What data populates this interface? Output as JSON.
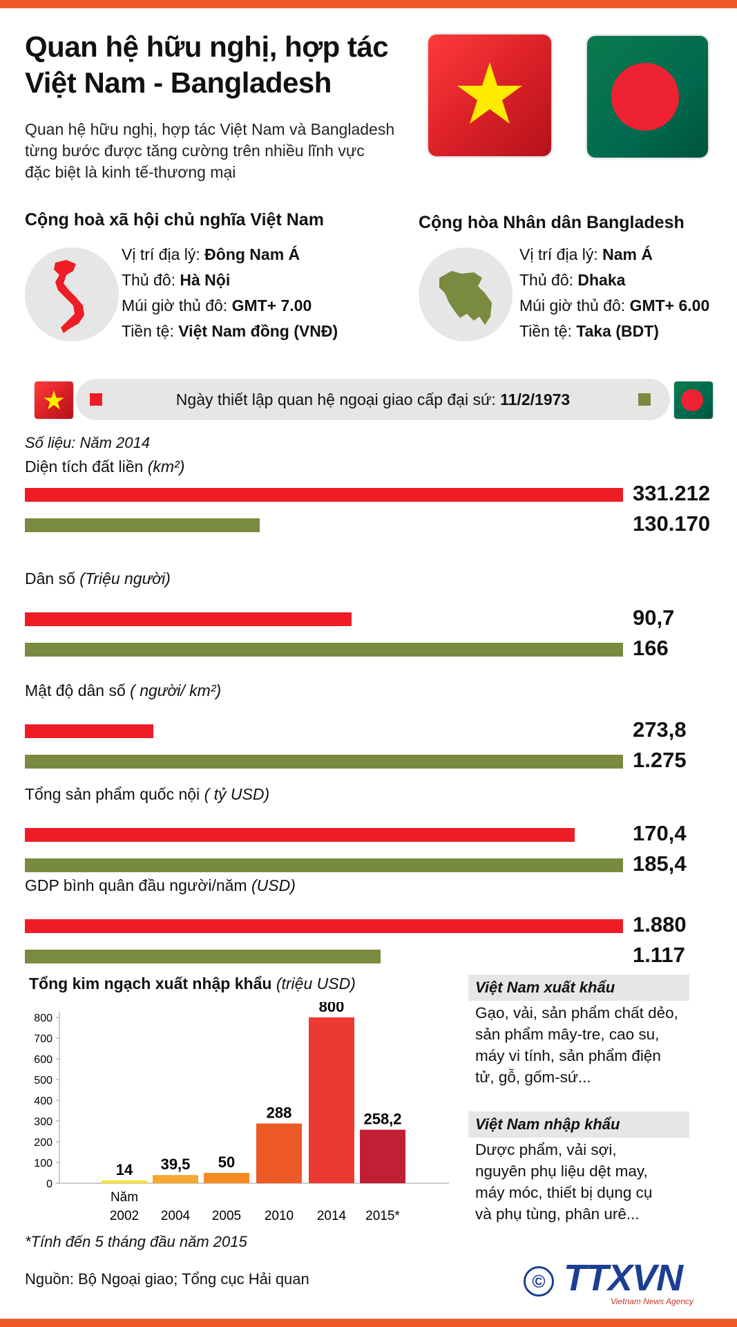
{
  "header": {
    "title_line1": "Quan hệ hữu nghị, hợp tác",
    "title_line2": "Việt Nam - Bangladesh",
    "intro_line1": "Quan hệ hữu nghị, hợp tác Việt Nam và Bangladesh",
    "intro_line2": "từng bước được tăng cường trên nhiều lĩnh vực",
    "intro_line3": "đặc biệt là kinh tế-thương mại"
  },
  "vietnam": {
    "heading": "Cộng hoà xã hội chủ nghĩa Việt Nam",
    "location_label": "Vị trí địa lý: ",
    "location": "Đông Nam Á",
    "capital_label": "Thủ đô: ",
    "capital": "Hà Nội",
    "timezone_label": "Múi giờ thủ đô: ",
    "timezone": "GMT+ 7.00",
    "currency_label": "Tiền tệ: ",
    "currency": "Việt Nam đồng (VNĐ)"
  },
  "bangladesh": {
    "heading": "Cộng hòa Nhân dân Bangladesh",
    "location_label": "Vị trí địa lý: ",
    "location": "Nam Á",
    "capital_label": "Thủ đô: ",
    "capital": "Dhaka",
    "timezone_label": "Múi giờ thủ đô: ",
    "timezone": "GMT+ 6.00",
    "currency_label": "Tiền tệ: ",
    "currency": "Taka (BDT)"
  },
  "relations": {
    "label": "Ngày thiết lập quan hệ ngoại giao cấp đại sứ: ",
    "date": "11/2/1973"
  },
  "colors": {
    "vietnam": "#ee1c25",
    "bangladesh": "#7a8a3e",
    "accent": "#f05a28"
  },
  "stats_note": "Số liệu: Năm 2014",
  "chart_data": [
    {
      "type": "bar",
      "orientation": "horizontal",
      "title": "",
      "stats": [
        {
          "label": "Diện tích đất liền ",
          "unit": "(km²)",
          "vietnam": 331212,
          "bangladesh": 130170,
          "vietnam_text": "331.212",
          "bangladesh_text": "130.170"
        },
        {
          "label": "Dân số ",
          "unit": "(Triệu người)",
          "vietnam": 90.7,
          "bangladesh": 166,
          "vietnam_text": "90,7",
          "bangladesh_text": "166"
        },
        {
          "label": "Mật độ dân số ",
          "unit": "( người/ km²)",
          "vietnam": 273.8,
          "bangladesh": 1275,
          "vietnam_text": "273,8",
          "bangladesh_text": "1.275"
        },
        {
          "label": "Tổng sản phẩm quốc nội ",
          "unit": "( tỷ USD)",
          "vietnam": 170.4,
          "bangladesh": 185.4,
          "vietnam_text": "170,4",
          "bangladesh_text": "185,4"
        },
        {
          "label": "GDP bình quân đầu người/năm ",
          "unit": "(USD)",
          "vietnam": 1880,
          "bangladesh": 1117,
          "vietnam_text": "1.880",
          "bangladesh_text": "1.117"
        }
      ]
    },
    {
      "type": "bar",
      "title": "Tổng kim ngạch xuất nhập khẩu ",
      "title_unit": "(triệu USD)",
      "categories": [
        "2002",
        "2004",
        "2005",
        "2010",
        "2014",
        "2015*"
      ],
      "first_category_prefix": "Năm",
      "values": [
        14,
        39.5,
        50,
        288,
        800,
        258.2
      ],
      "value_labels": [
        "14",
        "39,5",
        "50",
        "288",
        "800",
        "258,2"
      ],
      "bar_colors": [
        "#f7e23b",
        "#f8a733",
        "#f58a23",
        "#ee5a26",
        "#ec3a32",
        "#c11f34"
      ],
      "ylim": [
        0,
        800
      ],
      "yticks": [
        0,
        100,
        200,
        300,
        400,
        500,
        600,
        700,
        800
      ]
    }
  ],
  "exports": {
    "heading": "Việt Nam xuất khẩu",
    "lines": [
      "Gạo, vải, sản phẩm chất dẻo,",
      "sản phẩm mây-tre, cao su,",
      "máy vi tính, sản phẩm điện",
      "tử, gỗ, gốm-sứ..."
    ]
  },
  "imports": {
    "heading": "Việt Nam nhập khẩu",
    "lines": [
      "Dược phẩm, vải sợi,",
      "nguyên phụ liệu dệt may,",
      "máy móc, thiết bị dụng cụ",
      "và phụ tùng, phân urê..."
    ]
  },
  "footnote": "*Tính đến 5 tháng đầu năm 2015",
  "source": "Nguồn: Bộ Ngoại giao; Tổng cục Hải quan",
  "logo": {
    "copyright": "©",
    "text": "TTXVN",
    "subtitle": "Vietnam News Agency"
  }
}
